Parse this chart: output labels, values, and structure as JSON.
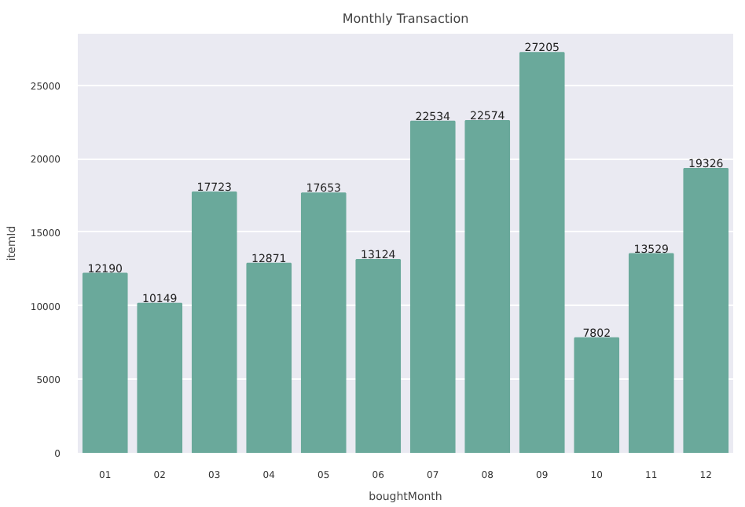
{
  "chart_data": {
    "type": "bar",
    "title": "Monthly Transaction",
    "xlabel": "boughtMonth",
    "ylabel": "itemId",
    "categories": [
      "01",
      "02",
      "03",
      "04",
      "05",
      "06",
      "07",
      "08",
      "09",
      "10",
      "11",
      "12"
    ],
    "values": [
      12190,
      10149,
      17723,
      12871,
      17653,
      13124,
      22534,
      22574,
      27205,
      7802,
      13529,
      19326
    ],
    "color": "#6aa99b",
    "ylim": [
      0,
      28500
    ],
    "yticks": [
      0,
      5000,
      10000,
      15000,
      20000,
      25000
    ],
    "grid": "y",
    "data_labels": true
  }
}
